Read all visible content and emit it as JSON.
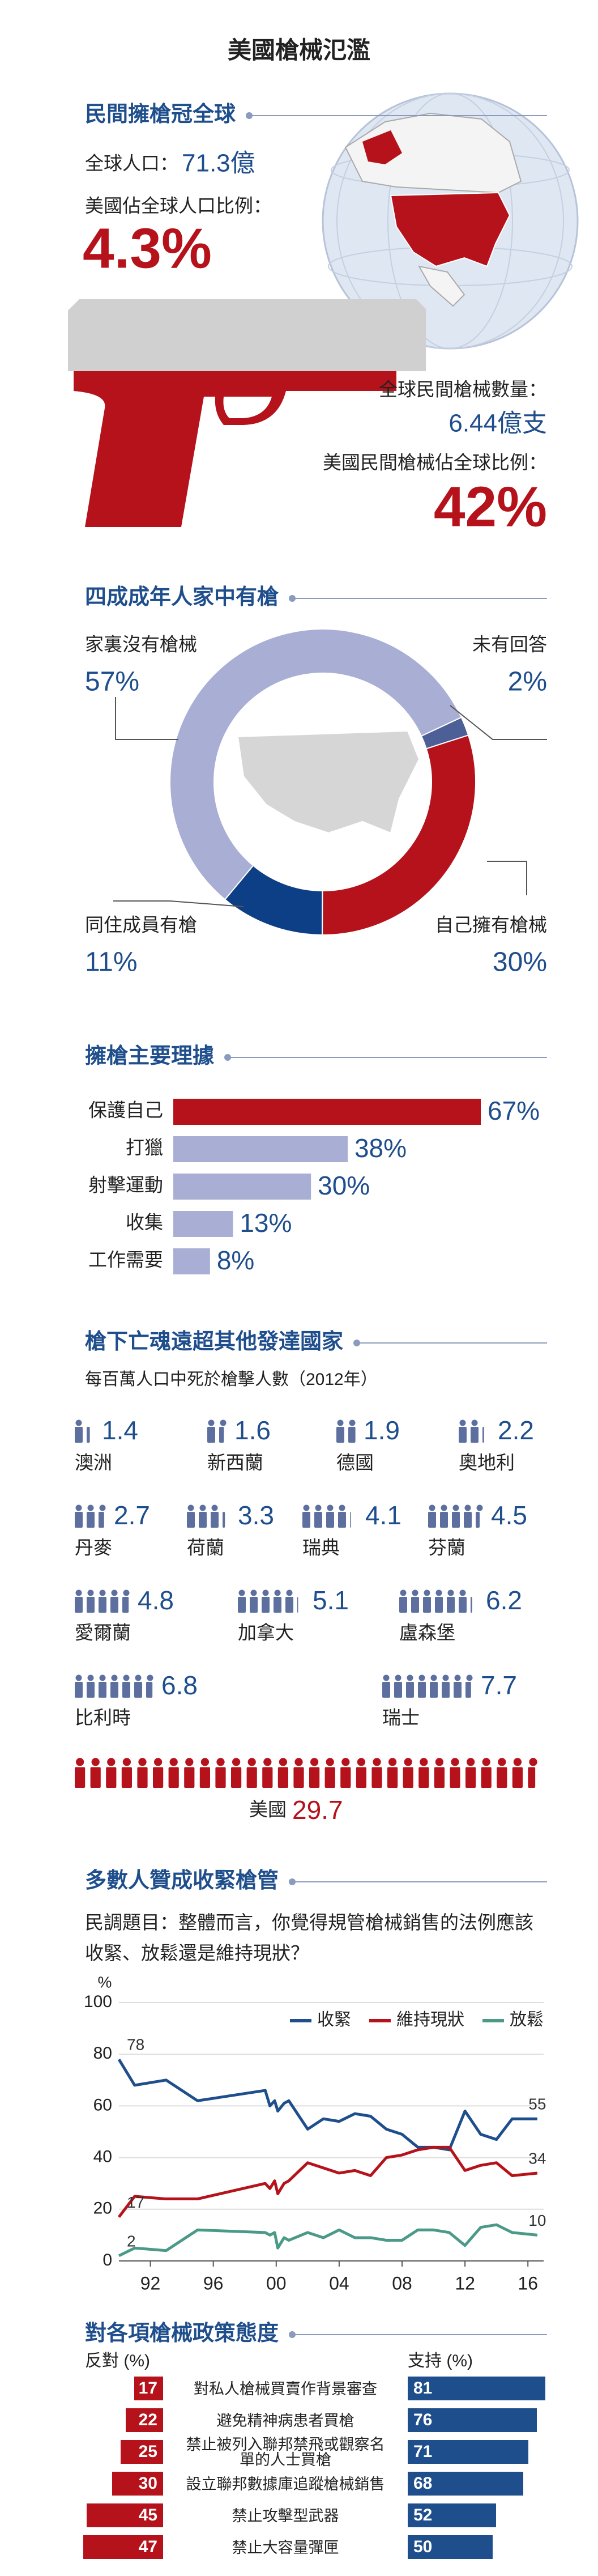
{
  "title": "美國槍械氾濫",
  "ownership": {
    "heading": "民間擁槍冠全球",
    "world_population_label": "全球人口：",
    "world_population": "71.3億",
    "us_share_label": "美國佔全球人口比例：",
    "us_share": "4.3%",
    "world_guns_label": "全球民間槍械數量：",
    "world_guns": "6.44億支",
    "us_guns_share_label": "美國民間槍械佔全球比例：",
    "us_guns_share": "42%"
  },
  "chart_data": [
    {
      "type": "pie",
      "title": "四成成年人家中有槍",
      "categories": [
        "未有回答",
        "自己擁有槍械",
        "同住成員有槍",
        "家裏沒有槍械"
      ],
      "values": [
        2,
        30,
        11,
        57
      ],
      "value_labels": [
        "2%",
        "30%",
        "11%",
        "57%"
      ],
      "colors": [
        "#4d5f97",
        "#b5121b",
        "#0d3f86",
        "#a9aed4"
      ]
    },
    {
      "type": "bar",
      "title": "擁槍主要理據",
      "categories": [
        "保護自己",
        "打獵",
        "射擊運動",
        "收集",
        "工作需要"
      ],
      "values": [
        67,
        38,
        30,
        13,
        8
      ],
      "value_labels": [
        "67%",
        "38%",
        "30%",
        "13%",
        "8%"
      ],
      "colors": [
        "#b5121b",
        "#a9aed4",
        "#a9aed4",
        "#a9aed4",
        "#a9aed4"
      ]
    },
    {
      "type": "pictogram",
      "title": "槍下亡魂遠超其他發達國家",
      "subtitle": "每百萬人口中死於槍擊人數（2012年）",
      "categories": [
        "澳洲",
        "新西蘭",
        "德國",
        "奧地利",
        "丹麥",
        "荷蘭",
        "瑞典",
        "芬蘭",
        "愛爾蘭",
        "加拿大",
        "盧森堡",
        "比利時",
        "瑞士",
        "美國"
      ],
      "values": [
        1.4,
        1.6,
        1.9,
        2.2,
        2.7,
        3.3,
        4.1,
        4.5,
        4.8,
        5.1,
        6.2,
        6.8,
        7.7,
        29.7
      ],
      "colors": [
        "#5d6f9e",
        "#5d6f9e",
        "#5d6f9e",
        "#5d6f9e",
        "#5d6f9e",
        "#5d6f9e",
        "#5d6f9e",
        "#5d6f9e",
        "#5d6f9e",
        "#5d6f9e",
        "#5d6f9e",
        "#5d6f9e",
        "#5d6f9e",
        "#b5121b"
      ]
    },
    {
      "type": "line",
      "title": "多數人贊成收緊槍管",
      "subtitle": "民調題目：整體而言，你覺得規管槍械銷售的法例應該收緊、放鬆還是維持現狀？",
      "y_label": "%",
      "x": [
        1990,
        1991,
        1993,
        1995,
        1999.3,
        1999.6,
        1999.9,
        2000.1,
        2000.5,
        2000.8,
        2002,
        2003,
        2004,
        2005,
        2006,
        2007,
        2008,
        2009,
        2010,
        2011,
        2012,
        2013,
        2014,
        2015,
        2016.6
      ],
      "series": [
        {
          "name": "收緊",
          "color": "#1f4e8c",
          "values": [
            78,
            68,
            70,
            62,
            66,
            60,
            62,
            58,
            61,
            62,
            51,
            55,
            54,
            57,
            56,
            51,
            49,
            44,
            44,
            43,
            58,
            49,
            47,
            55,
            55
          ]
        },
        {
          "name": "維持現狀",
          "color": "#b5121b",
          "values": [
            17,
            25,
            24,
            24,
            30,
            28,
            31,
            26,
            30,
            31,
            38,
            36,
            34,
            35,
            33,
            40,
            41,
            43,
            44,
            44,
            35,
            37,
            38,
            33,
            34
          ]
        },
        {
          "name": "放鬆",
          "color": "#4a9a87",
          "values": [
            2,
            5,
            4,
            12,
            11,
            10,
            11,
            5,
            9,
            8,
            11,
            9,
            12,
            9,
            9,
            8,
            8,
            12,
            12,
            11,
            6,
            13,
            14,
            11,
            10
          ]
        }
      ],
      "xlim": [
        1990,
        2017
      ],
      "ylim": [
        0,
        100
      ],
      "yticks": [
        0,
        20,
        40,
        60,
        80,
        100
      ],
      "xticks": [
        {
          "value": 1992,
          "label": "92"
        },
        {
          "value": 1996,
          "label": "96"
        },
        {
          "value": 2000,
          "label": "00"
        },
        {
          "value": 2004,
          "label": "04"
        },
        {
          "value": 2008,
          "label": "08"
        },
        {
          "value": 2012,
          "label": "12"
        },
        {
          "value": 2016,
          "label": "16"
        }
      ],
      "grid": true,
      "legend": "top-right"
    },
    {
      "type": "diverging_bar",
      "title": "對各項槍械政策態度",
      "left_label": "反對 (%)",
      "right_label": "支持 (%)",
      "categories": [
        "對私人槍械買賣作背景審查",
        "避免精神病患者買槍",
        "禁止被列入聯邦禁飛或觀察名單的人士買槍",
        "設立聯邦數據庫追蹤槍械銷售",
        "禁止攻擊型武器",
        "禁止大容量彈匣"
      ],
      "series": [
        {
          "color": "#b5121b",
          "values": [
            17,
            22,
            25,
            30,
            45,
            47
          ]
        },
        {
          "color": "#1f4e8c",
          "values": [
            81,
            76,
            71,
            68,
            52,
            50
          ]
        }
      ]
    }
  ]
}
